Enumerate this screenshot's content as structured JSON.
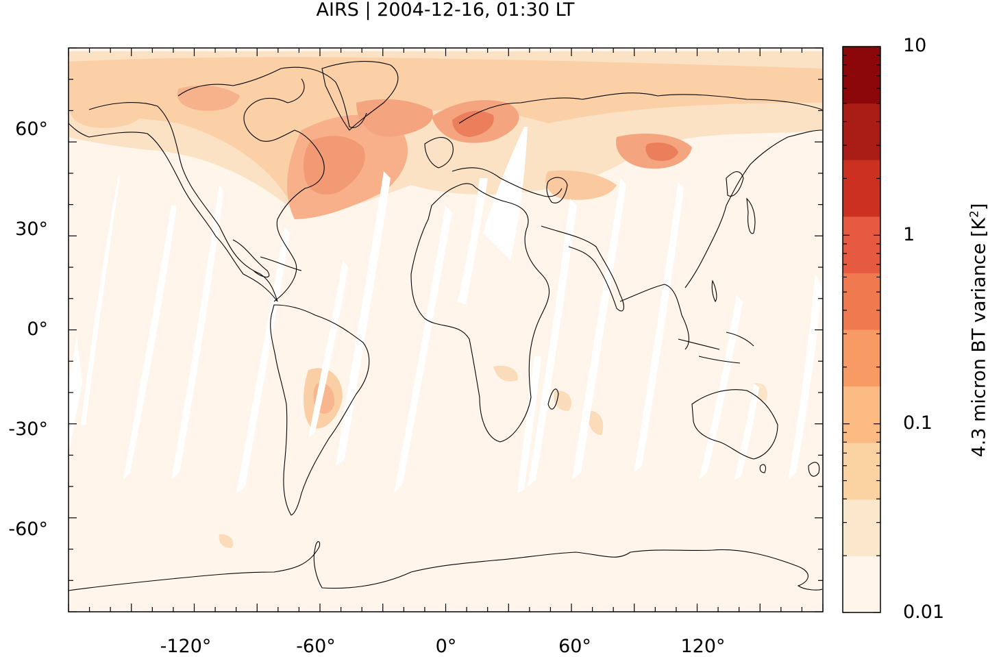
{
  "title": "AIRS | 2004-12-16, 01:30 LT",
  "map": {
    "projection": "equirectangular",
    "lon_range": [
      -180,
      180
    ],
    "lat_range": [
      -90,
      90
    ],
    "lat_tick_labels": [
      "60°",
      "30°",
      "0°",
      "-30°",
      "-60°"
    ],
    "lon_tick_labels": [
      "-120°",
      "-60°",
      "0°",
      "60°",
      "120°"
    ],
    "background_fill": "#fff5ea",
    "data_gap_color": "#ffffff",
    "coastline_color": "#000000",
    "features": [
      "coastlines",
      "orbit data gaps",
      "enhanced variance northern mid-latitudes",
      "enhanced variance South America",
      "enhanced variance central Asia"
    ]
  },
  "colorbar": {
    "label_main": "4.3 micron BT variance [K",
    "label_sup": "2",
    "label_end": "]",
    "scale": "log",
    "range": [
      0.01,
      10
    ],
    "tick_labels": [
      "10",
      "1",
      "0.1",
      "0.01"
    ],
    "colors": [
      "#fff5ea",
      "#fbe7cb",
      "#fbd3a2",
      "#fbbb83",
      "#f89a63",
      "#f07a4f",
      "#e55a40",
      "#cb3020",
      "#aa1c16",
      "#8b0709"
    ]
  }
}
